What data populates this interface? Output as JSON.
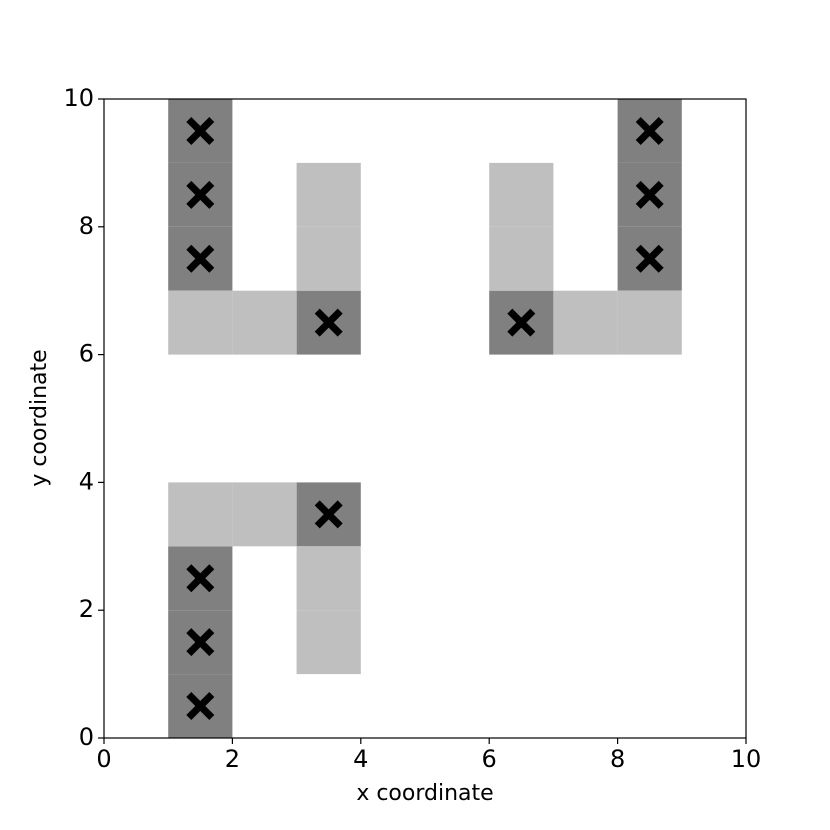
{
  "chart_data": {
    "type": "grid",
    "xlabel": "x coordinate",
    "ylabel": "y coordinate",
    "xlim": [
      0,
      10
    ],
    "ylim": [
      0,
      10
    ],
    "xticks": [
      0,
      2,
      4,
      6,
      8,
      10
    ],
    "yticks": [
      0,
      2,
      4,
      6,
      8,
      10
    ],
    "cell_size": 1,
    "cell_groups": [
      {
        "color": "#808080",
        "x": [
          1,
          1,
          1,
          3,
          6,
          8,
          8,
          8,
          3,
          1,
          1,
          1
        ],
        "y": [
          9,
          8,
          7,
          6,
          6,
          9,
          8,
          7,
          3,
          2,
          1,
          0
        ]
      },
      {
        "color": "#bfbfbf",
        "x": [
          3,
          3,
          1,
          2,
          6,
          6,
          7,
          8,
          1,
          2,
          3,
          3
        ],
        "y": [
          7,
          8,
          6,
          6,
          7,
          8,
          6,
          6,
          3,
          3,
          1,
          2
        ]
      }
    ],
    "markers": {
      "color": "#000000",
      "x": [
        1.5,
        1.5,
        1.5,
        3.5,
        6.5,
        8.5,
        8.5,
        8.5,
        3.5,
        1.5,
        1.5,
        1.5
      ],
      "y": [
        9.5,
        8.5,
        7.5,
        6.5,
        6.5,
        9.5,
        8.5,
        7.5,
        3.5,
        2.5,
        1.5,
        0.5
      ]
    }
  }
}
